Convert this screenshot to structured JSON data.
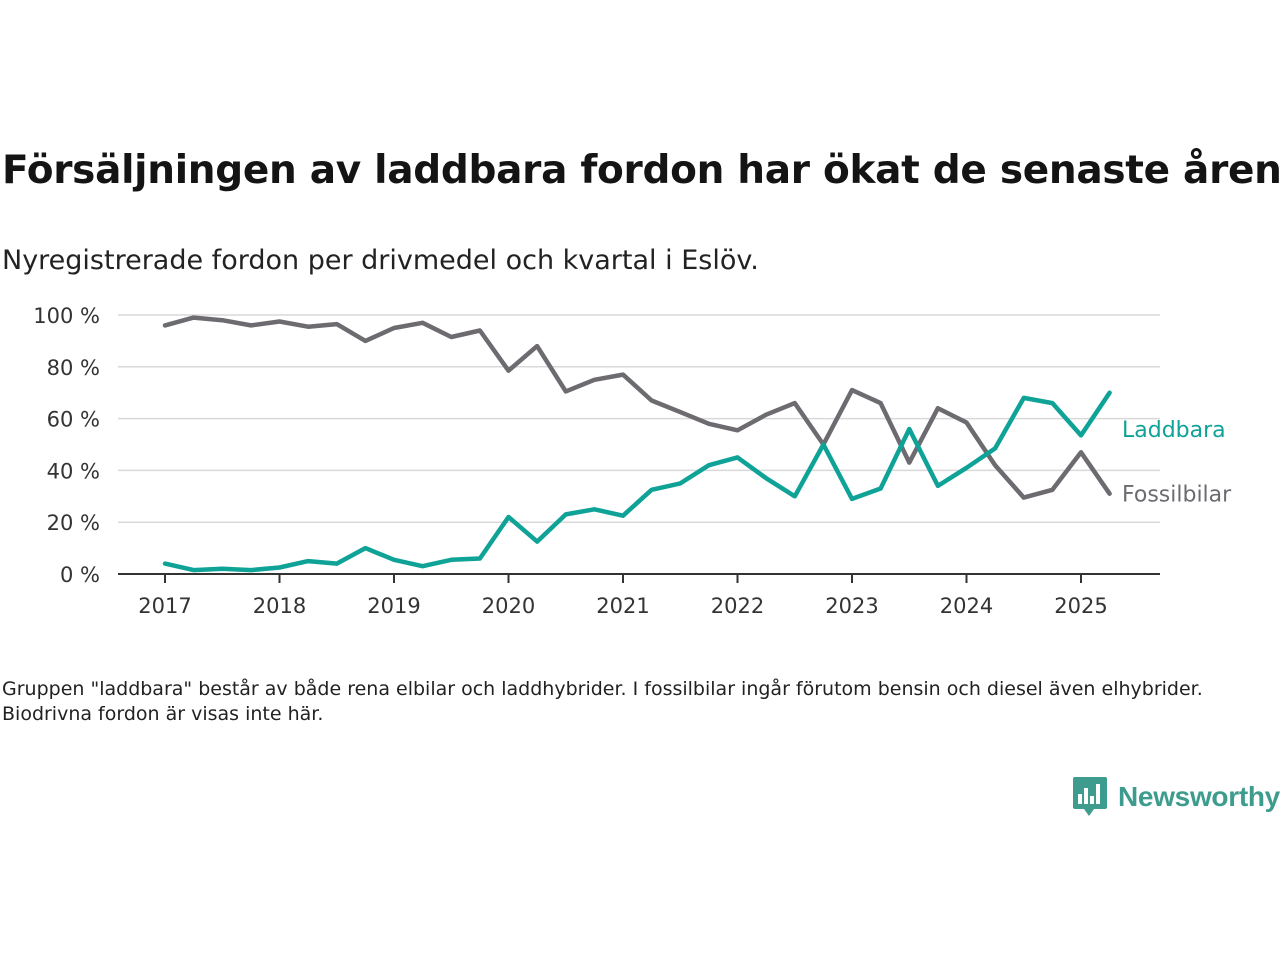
{
  "title": "Försäljningen av laddbara fordon har ökat de senaste åren",
  "subtitle": "Nyregistrerade fordon per drivmedel och kvartal i Eslöv.",
  "note": "Gruppen \"laddbara\" består av både rena elbilar och laddhybrider. I fossilbilar ingår förutom bensin och diesel även elhybrider. Biodrivna fordon är visas inte här.",
  "brand": {
    "name": "Newsworthy",
    "icon": "newsworthy-logo-icon",
    "color": "#3e9c8e"
  },
  "chart_data": {
    "type": "line",
    "ylim": [
      0,
      100
    ],
    "y_ticks": [
      0,
      20,
      40,
      60,
      80,
      100
    ],
    "y_tick_labels": [
      "0 %",
      "20 %",
      "40 %",
      "60 %",
      "80 %",
      "100 %"
    ],
    "x_ticks": [
      2017,
      2018,
      2019,
      2020,
      2021,
      2022,
      2023,
      2024,
      2025
    ],
    "x_tick_labels": [
      "2017",
      "2018",
      "2019",
      "2020",
      "2021",
      "2022",
      "2023",
      "2024",
      "2025"
    ],
    "grid": "horizontal",
    "x": [
      "2017-Q1",
      "2017-Q2",
      "2017-Q3",
      "2017-Q4",
      "2018-Q1",
      "2018-Q2",
      "2018-Q3",
      "2018-Q4",
      "2019-Q1",
      "2019-Q2",
      "2019-Q3",
      "2019-Q4",
      "2020-Q1",
      "2020-Q2",
      "2020-Q3",
      "2020-Q4",
      "2021-Q1",
      "2021-Q2",
      "2021-Q3",
      "2021-Q4",
      "2022-Q1",
      "2022-Q2",
      "2022-Q3",
      "2022-Q4",
      "2023-Q1",
      "2023-Q2",
      "2023-Q3",
      "2023-Q4",
      "2024-Q1",
      "2024-Q2",
      "2024-Q3",
      "2024-Q4",
      "2025-Q1",
      "2025-Q2"
    ],
    "series": [
      {
        "name": "Laddbara",
        "color": "#0fa297",
        "values": [
          4,
          1.5,
          2,
          1.5,
          2.5,
          5,
          4,
          10,
          5.5,
          3,
          5.5,
          6,
          22,
          12.5,
          23,
          25,
          22.5,
          32.5,
          35,
          42,
          45,
          37,
          30,
          50,
          29,
          33,
          56,
          34,
          41,
          48.5,
          68,
          66,
          53.5,
          70
        ]
      },
      {
        "name": "Fossilbilar",
        "color": "#6d6b70",
        "values": [
          96,
          99,
          98,
          96,
          97.5,
          95.5,
          96.5,
          90,
          95,
          97,
          91.5,
          94,
          78.5,
          88,
          70.5,
          75,
          77,
          67,
          62.5,
          58,
          55.5,
          61.5,
          66,
          50,
          71,
          66,
          43,
          64,
          58.5,
          42,
          29.5,
          32.5,
          47,
          31
        ]
      }
    ]
  }
}
